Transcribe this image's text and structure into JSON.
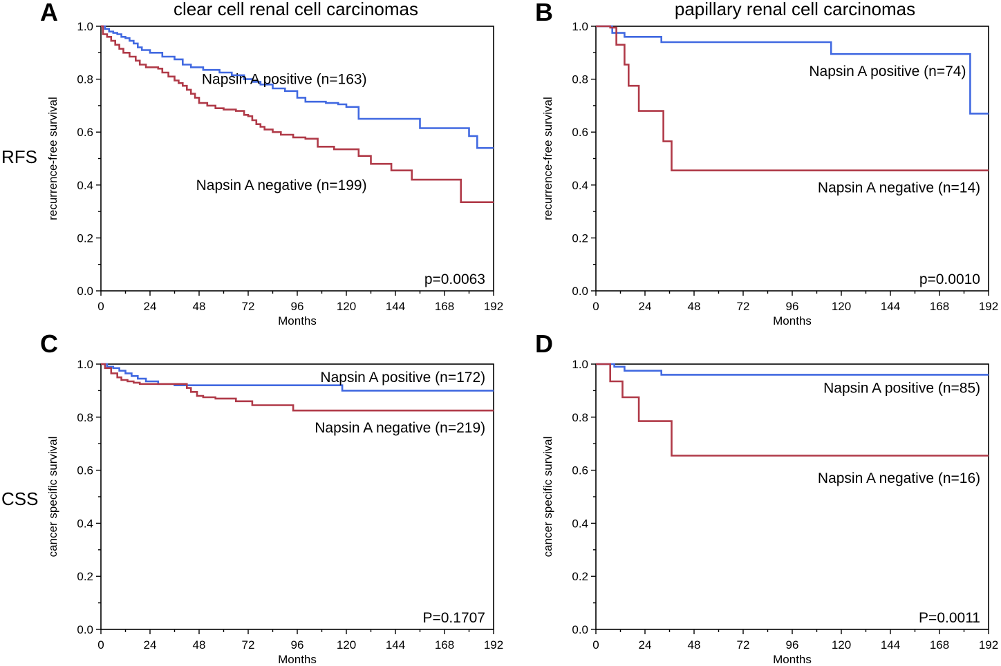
{
  "column_titles": [
    "clear cell renal cell carcinomas",
    "papillary renal cell carcinomas"
  ],
  "row_labels": [
    "RFS",
    "CSS"
  ],
  "colors": {
    "positive": "#4169e1",
    "negative": "#b03a48"
  },
  "chart_data": [
    {
      "panel": "A",
      "type": "line",
      "step": true,
      "ylabel": "recurrence-free survival",
      "xlabel": "Months",
      "xlim": [
        0,
        192
      ],
      "xticks": [
        0,
        24,
        48,
        72,
        96,
        120,
        144,
        168,
        192
      ],
      "ylim": [
        0,
        1.0
      ],
      "yticks": [
        "0.0",
        "0.2",
        "0.4",
        "0.6",
        "0.8",
        "1.0"
      ],
      "pvalue": "p=0.0063",
      "series": [
        {
          "name": "Napsin A positive (n=163)",
          "color_key": "positive",
          "x": [
            0,
            2,
            4,
            6,
            8,
            10,
            12,
            14,
            16,
            18,
            20,
            24,
            30,
            36,
            40,
            44,
            50,
            58,
            64,
            70,
            74,
            78,
            84,
            90,
            96,
            100,
            110,
            116,
            120,
            126,
            134,
            144,
            156,
            170,
            180,
            184,
            192
          ],
          "y": [
            1.0,
            0.99,
            0.98,
            0.975,
            0.97,
            0.96,
            0.955,
            0.945,
            0.935,
            0.92,
            0.91,
            0.9,
            0.885,
            0.875,
            0.855,
            0.845,
            0.835,
            0.825,
            0.815,
            0.8,
            0.79,
            0.78,
            0.765,
            0.755,
            0.73,
            0.715,
            0.71,
            0.705,
            0.695,
            0.65,
            0.65,
            0.65,
            0.615,
            0.615,
            0.585,
            0.54,
            0.54
          ]
        },
        {
          "name": "Napsin A negative (n=199)",
          "color_key": "negative",
          "x": [
            0,
            1,
            3,
            5,
            7,
            9,
            11,
            14,
            17,
            19,
            22,
            28,
            30,
            33,
            36,
            38,
            40,
            42,
            44,
            46,
            48,
            52,
            56,
            60,
            66,
            70,
            72,
            74,
            76,
            78,
            80,
            84,
            88,
            94,
            100,
            106,
            114,
            120,
            126,
            132,
            142,
            152,
            158,
            168,
            176,
            186,
            192
          ],
          "y": [
            1.0,
            0.97,
            0.96,
            0.945,
            0.93,
            0.915,
            0.9,
            0.885,
            0.87,
            0.855,
            0.845,
            0.84,
            0.825,
            0.81,
            0.795,
            0.785,
            0.775,
            0.76,
            0.745,
            0.73,
            0.71,
            0.7,
            0.69,
            0.685,
            0.68,
            0.665,
            0.66,
            0.645,
            0.63,
            0.62,
            0.61,
            0.6,
            0.59,
            0.58,
            0.575,
            0.545,
            0.535,
            0.535,
            0.51,
            0.48,
            0.455,
            0.42,
            0.42,
            0.42,
            0.335,
            0.335,
            0.335
          ]
        }
      ],
      "labels": [
        {
          "text": "Napsin A positive (n=163)",
          "x": 130,
          "y": 0.8
        },
        {
          "text": "Napsin A negative (n=199)",
          "x": 130,
          "y": 0.4
        }
      ]
    },
    {
      "panel": "B",
      "type": "line",
      "step": true,
      "ylabel": "recurrence-free survival",
      "xlabel": "Months",
      "xlim": [
        0,
        192
      ],
      "xticks": [
        0,
        24,
        48,
        72,
        96,
        120,
        144,
        168,
        192
      ],
      "ylim": [
        0,
        1.0
      ],
      "yticks": [
        "0.0",
        "0.2",
        "0.4",
        "0.6",
        "0.8",
        "1.0"
      ],
      "pvalue": "p=0.0010",
      "series": [
        {
          "name": "Napsin A positive (n=74)",
          "color_key": "positive",
          "x": [
            0,
            8,
            14,
            32,
            115,
            183,
            192
          ],
          "y": [
            1.0,
            0.975,
            0.96,
            0.94,
            0.895,
            0.67,
            0.67
          ]
        },
        {
          "name": "Napsin A negative (n=14)",
          "color_key": "negative",
          "x": [
            0,
            7,
            10,
            14,
            16,
            21,
            33,
            37,
            192
          ],
          "y": [
            1.0,
            0.995,
            0.93,
            0.855,
            0.775,
            0.68,
            0.565,
            0.455,
            0.455
          ]
        }
      ],
      "labels": [
        {
          "text": "Napsin A positive (n=74)",
          "x": 181,
          "y": 0.83
        },
        {
          "text": "Napsin A negative (n=14)",
          "x": 188,
          "y": 0.39
        }
      ]
    },
    {
      "panel": "C",
      "type": "line",
      "step": true,
      "ylabel": "cancer specific survival",
      "xlabel": "Months",
      "xlim": [
        0,
        192
      ],
      "xticks": [
        0,
        24,
        48,
        72,
        96,
        120,
        144,
        168,
        192
      ],
      "ylim": [
        0,
        1.0
      ],
      "yticks": [
        "0.0",
        "0.2",
        "0.4",
        "0.6",
        "0.8",
        "1.0"
      ],
      "pvalue": "P=0.1707",
      "series": [
        {
          "name": "Napsin A positive (n=172)",
          "color_key": "positive",
          "x": [
            0,
            3,
            6,
            9,
            12,
            15,
            18,
            22,
            28,
            36,
            48,
            60,
            80,
            100,
            118,
            192
          ],
          "y": [
            1.0,
            0.99,
            0.985,
            0.975,
            0.965,
            0.955,
            0.945,
            0.935,
            0.925,
            0.92,
            0.92,
            0.92,
            0.92,
            0.92,
            0.9,
            0.9
          ]
        },
        {
          "name": "Napsin A negative (n=219)",
          "color_key": "negative",
          "x": [
            0,
            2,
            5,
            8,
            10,
            13,
            16,
            19,
            30,
            40,
            42,
            44,
            47,
            50,
            56,
            66,
            74,
            80,
            94,
            100,
            192
          ],
          "y": [
            1.0,
            0.985,
            0.965,
            0.95,
            0.94,
            0.935,
            0.93,
            0.925,
            0.925,
            0.925,
            0.91,
            0.895,
            0.88,
            0.875,
            0.87,
            0.86,
            0.845,
            0.845,
            0.825,
            0.825,
            0.825
          ]
        }
      ],
      "labels": [
        {
          "text": "Napsin A positive (n=172)",
          "x": 188,
          "y": 0.95
        },
        {
          "text": "Napsin A negative (n=219)",
          "x": 188,
          "y": 0.76
        }
      ]
    },
    {
      "panel": "D",
      "type": "line",
      "step": true,
      "ylabel": "cancer specific survival",
      "xlabel": "Months",
      "xlim": [
        0,
        192
      ],
      "xticks": [
        0,
        24,
        48,
        72,
        96,
        120,
        144,
        168,
        192
      ],
      "ylim": [
        0,
        1.0
      ],
      "yticks": [
        "0.0",
        "0.2",
        "0.4",
        "0.6",
        "0.8",
        "1.0"
      ],
      "pvalue": "P=0.0011",
      "series": [
        {
          "name": "Napsin A positive (n=85)",
          "color_key": "positive",
          "x": [
            0,
            9,
            14,
            32,
            192
          ],
          "y": [
            1.0,
            0.99,
            0.975,
            0.96,
            0.96
          ]
        },
        {
          "name": "Napsin A negative (n=16)",
          "color_key": "negative",
          "x": [
            0,
            7,
            13,
            21,
            37,
            192
          ],
          "y": [
            1.0,
            0.935,
            0.875,
            0.785,
            0.655,
            0.655
          ]
        }
      ],
      "labels": [
        {
          "text": "Napsin A positive (n=85)",
          "x": 188,
          "y": 0.91
        },
        {
          "text": "Napsin A negative (n=16)",
          "x": 188,
          "y": 0.57
        }
      ]
    }
  ]
}
